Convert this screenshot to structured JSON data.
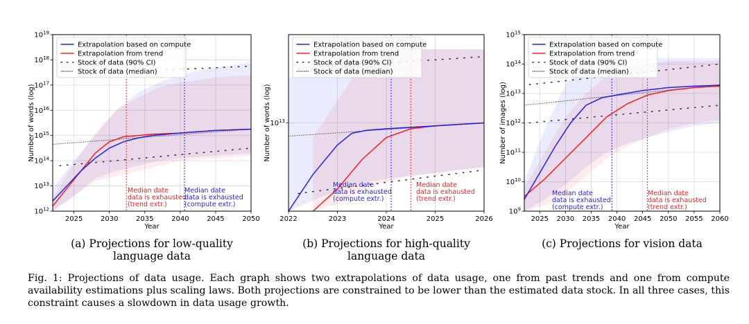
{
  "colors": {
    "compute": "#2020f0",
    "trend": "#f02020",
    "stock": "#333333",
    "grid": "#d8d8d8"
  },
  "legend": [
    "Extrapolation based on compute",
    "Extrapolation from trend",
    "Stock of data (90% CI)",
    "Stock of data (median)"
  ],
  "xlabel": "Year",
  "caption": "Fig. 1: Projections of data usage. Each graph shows two extrapolations of data usage, one from past trends and one from compute availability estimations plus scaling laws. Both projections are constrained to be lower than the estimated data stock. In all three cases, this constraint causes a slowdown in data usage growth.",
  "chart_data": [
    {
      "type": "line",
      "subcaption": [
        "(a) Projections for low-quality",
        "language data"
      ],
      "xlim": [
        2022,
        2050
      ],
      "xticks": [
        2025,
        2030,
        2035,
        2040,
        2045,
        2050
      ],
      "xtick_labels": [
        "2025",
        "2030",
        "2035",
        "2040",
        "2045",
        "2050"
      ],
      "ylabel": "Number of words (log)",
      "ylim_log10": [
        12,
        19
      ],
      "yticks": [
        {
          "v": 12,
          "m": "10",
          "e": "12"
        },
        {
          "v": 13,
          "m": "10",
          "e": "13"
        },
        {
          "v": 14,
          "m": "10",
          "e": "14"
        },
        {
          "v": 15,
          "m": "10",
          "e": "15"
        },
        {
          "v": 16,
          "m": "10",
          "e": "16"
        },
        {
          "v": 17,
          "m": "10",
          "e": "17"
        },
        {
          "v": 18,
          "m": "10",
          "e": "18"
        },
        {
          "v": 19,
          "m": "10",
          "e": "19"
        }
      ],
      "series": [
        {
          "name": "Extrapolation based on compute",
          "x": [
            2022,
            2024,
            2026,
            2028,
            2030,
            2032,
            2034,
            2036,
            2040,
            2045,
            2050
          ],
          "y_log10": [
            12.4,
            13.0,
            13.6,
            14.1,
            14.5,
            14.75,
            14.9,
            15.0,
            15.1,
            15.2,
            15.25
          ],
          "band_x": [
            2022,
            2025,
            2028,
            2031,
            2034,
            2037,
            2040,
            2045,
            2050
          ],
          "band_lo": [
            12.0,
            12.6,
            13.3,
            13.6,
            13.8,
            14.0,
            14.1,
            14.2,
            14.3
          ],
          "band_hi": [
            12.9,
            14.0,
            15.0,
            16.0,
            16.7,
            17.1,
            17.4,
            17.7,
            17.9
          ]
        },
        {
          "name": "Extrapolation from trend",
          "x": [
            2022,
            2024,
            2026,
            2028,
            2030,
            2032,
            2034,
            2036,
            2040,
            2045,
            2050
          ],
          "y_log10": [
            12.2,
            12.9,
            13.6,
            14.3,
            14.75,
            14.95,
            15.0,
            15.05,
            15.1,
            15.2,
            15.25
          ],
          "band_x": [
            2022,
            2025,
            2028,
            2031,
            2034,
            2037,
            2040,
            2045,
            2050
          ],
          "band_lo": [
            12.0,
            12.6,
            13.2,
            13.4,
            13.6,
            13.8,
            14.0,
            14.1,
            14.2
          ],
          "band_hi": [
            12.5,
            13.9,
            15.1,
            16.0,
            16.5,
            16.9,
            17.1,
            17.3,
            17.4
          ]
        },
        {
          "name": "Stock of data (median)",
          "x": [
            2022,
            2050
          ],
          "y_log10": [
            14.65,
            15.25
          ]
        },
        {
          "name": "Stock of data (90% CI) low",
          "x": [
            2023,
            2050
          ],
          "y_log10": [
            13.8,
            14.5
          ]
        },
        {
          "name": "Stock of data (90% CI) high",
          "x": [
            2038,
            2050
          ],
          "y_log10": [
            17.6,
            17.75
          ]
        }
      ],
      "vlines": [
        {
          "series": "trend",
          "x": 2032.4,
          "label": [
            "Median date",
            "data is exhausted",
            "(trend extr.)"
          ]
        },
        {
          "series": "compute",
          "x": 2040.6,
          "label": [
            "Median date",
            "data is exhausted",
            "(compute extr.)"
          ]
        }
      ]
    },
    {
      "type": "line",
      "subcaption": [
        "(b) Projections for high-quality",
        "language data"
      ],
      "xlim": [
        2022,
        2026
      ],
      "xticks": [
        2022,
        2023,
        2024,
        2025,
        2026
      ],
      "xtick_labels": [
        "2022",
        "2023",
        "2024",
        "2025",
        "2026"
      ],
      "ylabel": "Number of words (log)",
      "ylim_log10": [
        12.4,
        13.6
      ],
      "yticks": [
        {
          "v": 13,
          "m": "10",
          "e": "13"
        }
      ],
      "series": [
        {
          "name": "Extrapolation based on compute",
          "x": [
            2022,
            2022.5,
            2023,
            2023.3,
            2023.6,
            2024,
            2024.5,
            2025,
            2026
          ],
          "y_log10": [
            12.4,
            12.65,
            12.85,
            12.93,
            12.95,
            12.96,
            12.97,
            12.98,
            13.0
          ],
          "band_x": [
            2022,
            2022.7,
            2023.3,
            2024,
            2024.5,
            2025,
            2026
          ],
          "band_lo": [
            12.4,
            12.5,
            12.58,
            12.62,
            12.64,
            12.66,
            12.7
          ],
          "band_hi": [
            13.3,
            13.45,
            13.5,
            13.5,
            13.5,
            13.5,
            13.5
          ]
        },
        {
          "name": "Extrapolation from trend",
          "x": [
            2022.5,
            2023,
            2023.5,
            2024,
            2024.5,
            2025,
            2026
          ],
          "y_log10": [
            12.4,
            12.55,
            12.75,
            12.9,
            12.96,
            12.98,
            13.0
          ],
          "band_x": [
            2022.5,
            2023,
            2023.5,
            2024,
            2024.5,
            2025,
            2026
          ],
          "band_lo": [
            12.4,
            12.45,
            12.55,
            12.6,
            12.64,
            12.66,
            12.7
          ],
          "band_hi": [
            12.9,
            13.15,
            13.4,
            13.5,
            13.5,
            13.5,
            13.5
          ]
        },
        {
          "name": "Stock of data (median)",
          "x": [
            2022,
            2026
          ],
          "y_log10": [
            12.91,
            13.0
          ]
        },
        {
          "name": "Stock of data (90% CI) low",
          "x": [
            2022.2,
            2026
          ],
          "y_log10": [
            12.52,
            12.68
          ]
        },
        {
          "name": "Stock of data (90% CI) high",
          "x": [
            2022.2,
            2026
          ],
          "y_log10": [
            13.37,
            13.45
          ]
        }
      ],
      "vlines": [
        {
          "series": "compute",
          "x": 2024.1,
          "label": [
            "Median date",
            "data is exhausted",
            "(compute extr.)"
          ]
        },
        {
          "series": "trend",
          "x": 2024.5,
          "label": [
            "Median date",
            "data is exhausted",
            "(trend extr.)"
          ]
        }
      ]
    },
    {
      "type": "line",
      "subcaption": [
        "(c) Projections for vision data"
      ],
      "xlim": [
        2022,
        2060
      ],
      "xticks": [
        2025,
        2030,
        2035,
        2040,
        2045,
        2050,
        2055,
        2060
      ],
      "xtick_labels": [
        "2025",
        "2030",
        "2035",
        "2040",
        "2045",
        "2050",
        "2055",
        "2060"
      ],
      "ylabel": "Number of images (log)",
      "ylim_log10": [
        9,
        15
      ],
      "yticks": [
        {
          "v": 9,
          "m": "10",
          "e": "9"
        },
        {
          "v": 10,
          "m": "10",
          "e": "10"
        },
        {
          "v": 11,
          "m": "10",
          "e": "11"
        },
        {
          "v": 12,
          "m": "10",
          "e": "12"
        },
        {
          "v": 13,
          "m": "10",
          "e": "13"
        },
        {
          "v": 14,
          "m": "10",
          "e": "14"
        },
        {
          "v": 15,
          "m": "10",
          "e": "15"
        }
      ],
      "series": [
        {
          "name": "Extrapolation based on compute",
          "x": [
            2022,
            2025,
            2028,
            2031,
            2034,
            2037,
            2040,
            2045,
            2050,
            2055,
            2060
          ],
          "y_log10": [
            9.4,
            10.3,
            11.2,
            12.0,
            12.6,
            12.85,
            12.95,
            13.1,
            13.2,
            13.25,
            13.28
          ],
          "band_x": [
            2022,
            2026,
            2030,
            2034,
            2038,
            2042,
            2046,
            2050,
            2055,
            2060
          ],
          "band_lo": [
            9.0,
            9.4,
            9.9,
            10.5,
            11.0,
            11.3,
            11.5,
            11.7,
            11.9,
            12.0
          ],
          "band_hi": [
            10.0,
            11.8,
            13.3,
            14.0,
            14.1,
            14.2,
            14.2,
            14.2,
            14.2,
            14.2
          ]
        },
        {
          "name": "Extrapolation from trend",
          "x": [
            2022,
            2026,
            2030,
            2034,
            2038,
            2042,
            2046,
            2050,
            2055,
            2060
          ],
          "y_log10": [
            9.5,
            10.1,
            10.8,
            11.5,
            12.2,
            12.65,
            12.95,
            13.1,
            13.2,
            13.25
          ],
          "band_x": [
            2022,
            2026,
            2030,
            2034,
            2038,
            2042,
            2046,
            2050,
            2055,
            2060
          ],
          "band_lo": [
            9.0,
            9.2,
            9.6,
            10.2,
            10.8,
            11.2,
            11.5,
            11.8,
            12.0,
            12.1
          ],
          "band_hi": [
            9.8,
            11.0,
            12.2,
            13.0,
            13.6,
            13.9,
            14.0,
            14.1,
            14.1,
            14.1
          ]
        },
        {
          "name": "Stock of data (median)",
          "x": [
            2022,
            2060
          ],
          "y_log10": [
            12.6,
            13.3
          ]
        },
        {
          "name": "Stock of data (90% CI) low",
          "x": [
            2023,
            2060
          ],
          "y_log10": [
            12.0,
            12.6
          ]
        },
        {
          "name": "Stock of data (90% CI) high",
          "x": [
            2023,
            2060
          ],
          "y_log10": [
            13.3,
            14.0
          ]
        }
      ],
      "vlines": [
        {
          "series": "compute",
          "x": 2039.0,
          "label": [
            "Median date",
            "data is exhausted",
            "(compute extr.)"
          ]
        },
        {
          "series": "trend",
          "x": 2045.9,
          "label": [
            "Median date",
            "data is exhausted",
            "(trend extr.)"
          ]
        }
      ]
    }
  ]
}
